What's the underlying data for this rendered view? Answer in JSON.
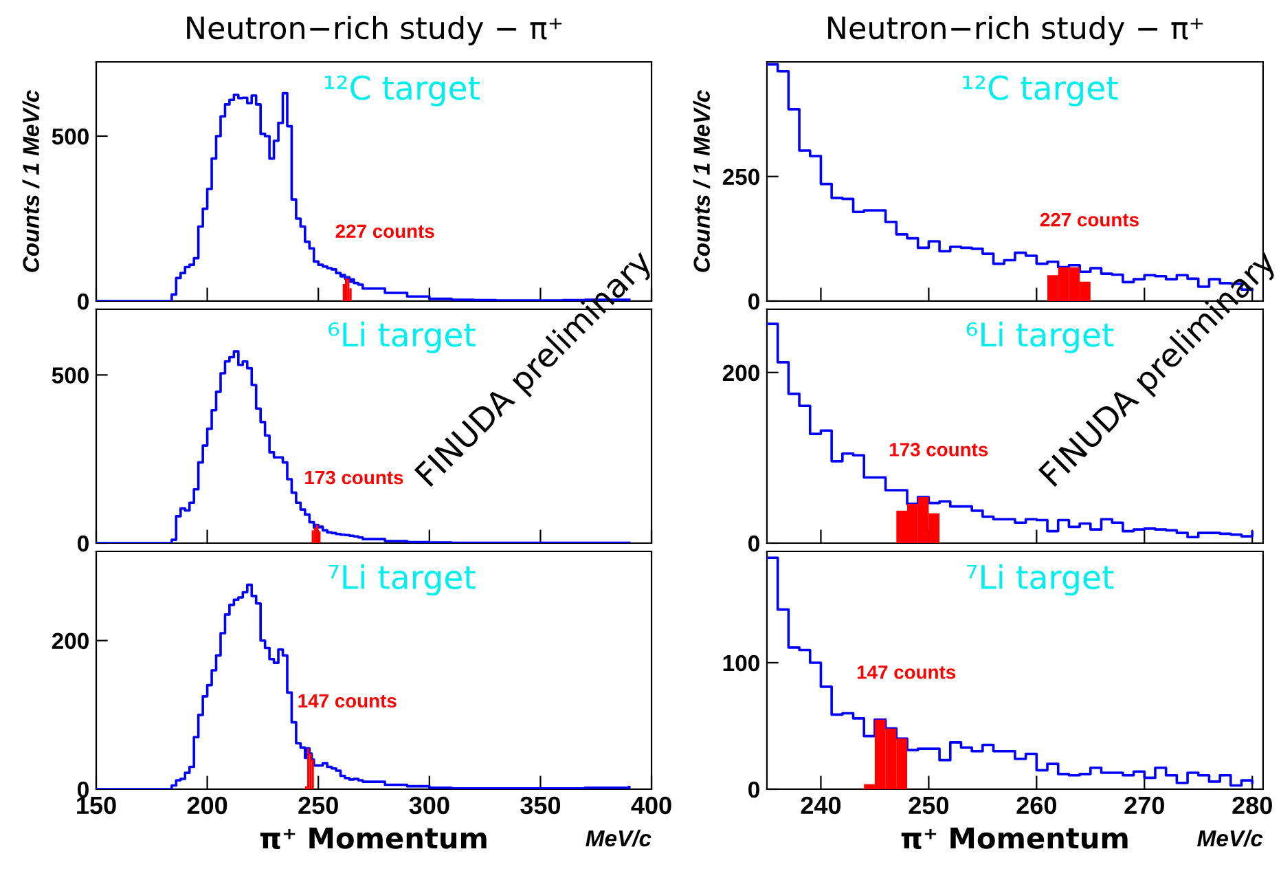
{
  "chart_data": [
    {
      "type": "histogram",
      "title": "Neutron−rich study − π⁺",
      "ylabel": "Counts / 1 MeV/c",
      "annotations": [
        "¹²C target",
        "227 counts"
      ],
      "xlim": [
        150,
        400
      ],
      "xticks": [
        150,
        200,
        250,
        300,
        350,
        400
      ],
      "ylim": [
        0,
        725
      ],
      "yticks": [
        0,
        500
      ],
      "tick_labels": "y",
      "bins": [
        261,
        262,
        263,
        264,
        265
      ],
      "series": [
        {
          "type": "step",
          "color": "#0000ff",
          "x": [
            150,
            180,
            182,
            184,
            186,
            188,
            190,
            192,
            194,
            196,
            198,
            200,
            202,
            204,
            206,
            208,
            210,
            212,
            214,
            216,
            218,
            220,
            222,
            224,
            226,
            228,
            230,
            232,
            234,
            236,
            238,
            240,
            242,
            244,
            246,
            248,
            250,
            252,
            254,
            256,
            258,
            260,
            261,
            262,
            263,
            264,
            265,
            266,
            268,
            270,
            280,
            290,
            300,
            310,
            320,
            330,
            340,
            350,
            360,
            370,
            380,
            390
          ],
          "values": [
            0,
            0,
            0,
            20,
            70,
            85,
            103,
            110,
            130,
            226,
            280,
            340,
            432,
            500,
            560,
            596,
            610,
            625,
            615,
            616,
            600,
            623,
            596,
            507,
            500,
            432,
            486,
            540,
            630,
            530,
            308,
            250,
            226,
            180,
            160,
            120,
            110,
            105,
            100,
            96,
            85,
            75,
            79,
            68,
            72,
            59,
            66,
            55,
            50,
            38,
            25,
            14,
            7,
            4,
            3,
            2,
            2,
            2,
            3,
            4,
            4,
            4
          ]
        },
        {
          "type": "histogram",
          "color": "#ff0000",
          "values": [
            52,
            68,
            68,
            39
          ]
        }
      ]
    },
    {
      "type": "histogram",
      "title": "Neutron−rich study − π⁺",
      "ylabel": "Counts / 1 MeV/c",
      "annotations": [
        "¹²C target",
        "227 counts"
      ],
      "xlim": [
        235,
        281
      ],
      "xticks": [
        240,
        250,
        260,
        270,
        280
      ],
      "ylim": [
        0,
        480
      ],
      "yticks": [
        0,
        250
      ],
      "tick_labels": "y",
      "bins": [
        235,
        236,
        237,
        238,
        239,
        240,
        241,
        242,
        243,
        244,
        245,
        246,
        247,
        248,
        249,
        250,
        251,
        252,
        253,
        254,
        255,
        256,
        257,
        258,
        259,
        260,
        261,
        262,
        263,
        264,
        265,
        266,
        267,
        268,
        269,
        270,
        271,
        272,
        273,
        274,
        275,
        276,
        277,
        278,
        279,
        280,
        281
      ],
      "series": [
        {
          "type": "histogram",
          "color": "#ff0000",
          "values": [
            null,
            null,
            null,
            null,
            null,
            null,
            null,
            null,
            null,
            null,
            null,
            null,
            null,
            null,
            null,
            null,
            null,
            null,
            null,
            null,
            null,
            null,
            null,
            null,
            null,
            null,
            52,
            68,
            68,
            39,
            null,
            null,
            null,
            null,
            null,
            null,
            null,
            null,
            null,
            null,
            null,
            null,
            null,
            null,
            null,
            null
          ]
        },
        {
          "type": "step",
          "color": "#0000ff",
          "x": [
            235,
            236,
            237,
            238,
            239,
            240,
            241,
            242,
            243,
            244,
            245,
            246,
            247,
            248,
            249,
            250,
            251,
            252,
            253,
            254,
            255,
            256,
            257,
            258,
            259,
            260,
            261,
            262,
            263,
            264,
            265,
            266,
            267,
            268,
            269,
            270,
            271,
            272,
            273,
            274,
            275,
            276,
            277,
            278,
            279,
            280
          ],
          "values": [
            475,
            461,
            385,
            302,
            291,
            235,
            207,
            205,
            179,
            182,
            182,
            159,
            134,
            126,
            107,
            120,
            100,
            109,
            107,
            105,
            95,
            75,
            82,
            97,
            91,
            75,
            79,
            68,
            72,
            59,
            66,
            55,
            53,
            38,
            44,
            52,
            50,
            44,
            52,
            45,
            29,
            44,
            36,
            35,
            23,
            23
          ]
        }
      ]
    },
    {
      "type": "histogram",
      "annotations": [
        "⁶Li target",
        "173 counts",
        "FINUDA preliminary"
      ],
      "xlim": [
        150,
        400
      ],
      "xticks": [
        150,
        200,
        250,
        300,
        350,
        400
      ],
      "ylim": [
        0,
        695
      ],
      "yticks": [
        0,
        500
      ],
      "tick_labels": "y",
      "bins": [
        247,
        248,
        249,
        250,
        251
      ],
      "series": [
        {
          "type": "step",
          "color": "#0000ff",
          "x": [
            150,
            180,
            182,
            184,
            186,
            188,
            190,
            192,
            194,
            196,
            198,
            200,
            202,
            204,
            206,
            208,
            210,
            212,
            214,
            216,
            218,
            220,
            222,
            224,
            226,
            228,
            230,
            232,
            234,
            236,
            238,
            240,
            242,
            244,
            246,
            247,
            248,
            249,
            250,
            251,
            252,
            254,
            256,
            258,
            260,
            262,
            264,
            266,
            268,
            270,
            280,
            290,
            300,
            310,
            320,
            330,
            340,
            350,
            360,
            370,
            380,
            390
          ],
          "values": [
            0,
            0,
            0,
            10,
            80,
            103,
            97,
            120,
            160,
            240,
            290,
            340,
            395,
            450,
            505,
            540,
            553,
            570,
            530,
            540,
            520,
            470,
            400,
            360,
            320,
            270,
            255,
            255,
            240,
            190,
            150,
            120,
            100,
            85,
            62,
            62,
            46,
            54,
            47,
            49,
            38,
            32,
            30,
            27,
            25,
            24,
            22,
            20,
            17,
            12,
            6,
            3,
            2,
            1,
            1,
            1,
            1,
            1,
            1,
            1,
            1,
            1
          ]
        },
        {
          "type": "histogram",
          "color": "#ff0000",
          "values": [
            38,
            46,
            54,
            35
          ]
        }
      ]
    },
    {
      "type": "histogram",
      "annotations": [
        "⁶Li target",
        "173 counts",
        "FINUDA preliminary"
      ],
      "xlim": [
        235,
        281
      ],
      "xticks": [
        240,
        250,
        260,
        270,
        280
      ],
      "ylim": [
        0,
        274
      ],
      "yticks": [
        0,
        200
      ],
      "tick_labels": "y",
      "bins": [
        235,
        236,
        237,
        238,
        239,
        240,
        241,
        242,
        243,
        244,
        245,
        246,
        247,
        248,
        249,
        250,
        251,
        252,
        253,
        254,
        255,
        256,
        257,
        258,
        259,
        260,
        261,
        262,
        263,
        264,
        265,
        266,
        267,
        268,
        269,
        270,
        271,
        272,
        273,
        274,
        275,
        276,
        277,
        278,
        279,
        280,
        281
      ],
      "series": [
        {
          "type": "histogram",
          "color": "#ff0000",
          "values": [
            null,
            null,
            null,
            null,
            null,
            null,
            null,
            null,
            null,
            null,
            null,
            null,
            38,
            46,
            54,
            35,
            null,
            null,
            null,
            null,
            null,
            null,
            null,
            null,
            null,
            null,
            null,
            null,
            null,
            null,
            null,
            null,
            null,
            null,
            null,
            null,
            null,
            null,
            null,
            null,
            null,
            null,
            null,
            null,
            null,
            null
          ]
        },
        {
          "type": "step",
          "color": "#0000ff",
          "x": [
            235,
            236,
            237,
            238,
            239,
            240,
            241,
            242,
            243,
            244,
            245,
            246,
            247,
            248,
            249,
            250,
            251,
            252,
            253,
            254,
            255,
            256,
            257,
            258,
            259,
            260,
            261,
            262,
            263,
            264,
            265,
            266,
            267,
            268,
            269,
            270,
            271,
            272,
            273,
            274,
            275,
            276,
            277,
            278,
            279,
            280
          ],
          "values": [
            257,
            212,
            175,
            161,
            128,
            132,
            96,
            105,
            103,
            77,
            77,
            62,
            62,
            46,
            54,
            47,
            49,
            43,
            43,
            38,
            31,
            28,
            28,
            24,
            28,
            27,
            14,
            27,
            19,
            23,
            16,
            28,
            24,
            14,
            16,
            17,
            16,
            15,
            12,
            7,
            12,
            12,
            11,
            10,
            8,
            13
          ]
        }
      ]
    },
    {
      "type": "histogram",
      "xlabel": "π⁺ Momentum",
      "annotations": [
        "⁷Li target",
        "147 counts",
        "MeV/c"
      ],
      "xlim": [
        150,
        400
      ],
      "xticks": [
        150,
        200,
        250,
        300,
        350,
        400
      ],
      "ylim": [
        0,
        320
      ],
      "yticks": [
        0,
        200
      ],
      "bins": [
        244,
        245,
        246,
        247,
        248
      ],
      "series": [
        {
          "type": "step",
          "color": "#0000ff",
          "x": [
            150,
            180,
            182,
            184,
            186,
            188,
            190,
            192,
            194,
            196,
            198,
            200,
            202,
            204,
            206,
            208,
            210,
            212,
            214,
            216,
            218,
            220,
            222,
            224,
            226,
            228,
            230,
            232,
            234,
            236,
            238,
            240,
            242,
            244,
            245,
            246,
            247,
            248,
            250,
            252,
            254,
            256,
            258,
            260,
            262,
            264,
            266,
            268,
            270,
            280,
            290,
            300,
            310,
            320,
            330,
            340,
            350,
            360,
            370,
            380,
            390
          ],
          "values": [
            0,
            0,
            0,
            5,
            12,
            14,
            22,
            30,
            70,
            100,
            125,
            140,
            160,
            180,
            210,
            235,
            248,
            255,
            258,
            265,
            275,
            260,
            250,
            200,
            190,
            175,
            170,
            188,
            180,
            130,
            90,
            62,
            56,
            42,
            55,
            48,
            40,
            32,
            32,
            35,
            30,
            28,
            25,
            18,
            15,
            13,
            14,
            12,
            10,
            6,
            4,
            2,
            1,
            1,
            1,
            1,
            1,
            1,
            2,
            2,
            3
          ]
        },
        {
          "type": "histogram",
          "color": "#ff0000",
          "values": [
            4,
            55,
            48,
            40
          ]
        }
      ]
    },
    {
      "type": "histogram",
      "xlabel": "π⁺ Momentum",
      "annotations": [
        "⁷Li target",
        "147 counts",
        "MeV/c"
      ],
      "xlim": [
        235,
        281
      ],
      "xticks": [
        240,
        250,
        260,
        270,
        280
      ],
      "ylim": [
        0,
        188
      ],
      "yticks": [
        0,
        100
      ],
      "bins": [
        235,
        236,
        237,
        238,
        239,
        240,
        241,
        242,
        243,
        244,
        245,
        246,
        247,
        248,
        249,
        250,
        251,
        252,
        253,
        254,
        255,
        256,
        257,
        258,
        259,
        260,
        261,
        262,
        263,
        264,
        265,
        266,
        267,
        268,
        269,
        270,
        271,
        272,
        273,
        274,
        275,
        276,
        277,
        278,
        279,
        280,
        281
      ],
      "series": [
        {
          "type": "histogram",
          "color": "#ff0000",
          "values": [
            null,
            null,
            null,
            null,
            null,
            null,
            null,
            null,
            null,
            4,
            55,
            48,
            40,
            null,
            null,
            null,
            null,
            null,
            null,
            null,
            null,
            null,
            null,
            null,
            null,
            null,
            null,
            null,
            null,
            null,
            null,
            null,
            null,
            null,
            null,
            null,
            null,
            null,
            null,
            null,
            null,
            null,
            null,
            null,
            null,
            null
          ]
        },
        {
          "type": "step",
          "color": "#0000ff",
          "x": [
            235,
            236,
            237,
            238,
            239,
            240,
            241,
            242,
            243,
            244,
            245,
            246,
            247,
            248,
            249,
            250,
            251,
            252,
            253,
            254,
            255,
            256,
            257,
            258,
            259,
            260,
            261,
            262,
            263,
            264,
            265,
            266,
            267,
            268,
            269,
            270,
            271,
            272,
            273,
            274,
            275,
            276,
            277,
            278,
            279,
            280
          ],
          "values": [
            183,
            142,
            112,
            110,
            100,
            81,
            59,
            60,
            56,
            42,
            55,
            48,
            40,
            31,
            32,
            32,
            23,
            37,
            33,
            30,
            35,
            30,
            30,
            24,
            28,
            15,
            20,
            12,
            11,
            12,
            17,
            13,
            13,
            11,
            14,
            9,
            17,
            11,
            5,
            13,
            11,
            6,
            11,
            3,
            7,
            5
          ]
        }
      ]
    }
  ]
}
